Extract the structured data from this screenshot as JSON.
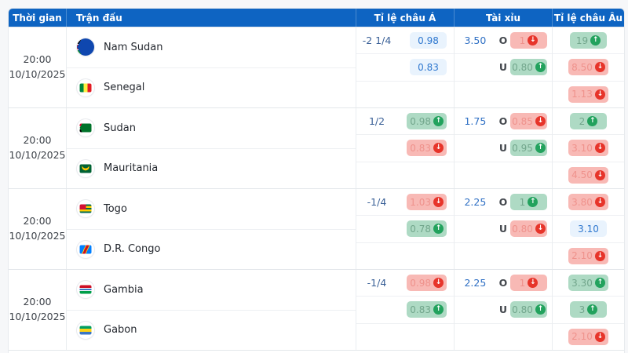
{
  "header": {
    "time": "Thời gian",
    "match": "Trận đấu",
    "asian": "Tỉ lệ châu Á",
    "ou": "Tài xỉu",
    "euro": "Tỉ lệ châu Âu"
  },
  "colors": {
    "header_bg": "#0e64c2",
    "pill_blue_bg": "#e9f3fd",
    "pill_blue_text": "#2f78cf",
    "pill_green_bg": "#aedac4",
    "pill_green_text": "#72a68c",
    "pill_red_bg": "#f8b9b5",
    "pill_red_text": "#ef928c",
    "trend_up_icon": "#22a25d",
    "trend_down_icon": "#e7342a"
  },
  "matches": [
    {
      "time": {
        "hour": "20:00",
        "date": "10/10/2025"
      },
      "home": {
        "name": "Nam Sudan",
        "flag": "flag-ssd"
      },
      "away": {
        "name": "Senegal",
        "flag": "flag-sen"
      },
      "asian": [
        {
          "hcp": "-2 1/4",
          "odds": "0.98",
          "style": "blue",
          "trend": "none"
        },
        {
          "hcp": "",
          "odds": "0.83",
          "style": "blue",
          "trend": "none"
        },
        {
          "hcp": "",
          "odds": "",
          "style": "none",
          "trend": "none"
        }
      ],
      "ou": [
        {
          "line": "3.50",
          "side": "O",
          "odds": "1",
          "style": "red",
          "trend": "down"
        },
        {
          "line": "",
          "side": "U",
          "odds": "0.80",
          "style": "green",
          "trend": "up"
        },
        {
          "line": "",
          "side": "",
          "odds": "",
          "style": "none",
          "trend": "none"
        }
      ],
      "euro": [
        {
          "odds": "19",
          "style": "green",
          "trend": "up"
        },
        {
          "odds": "8.50",
          "style": "red",
          "trend": "down"
        },
        {
          "odds": "1.13",
          "style": "red",
          "trend": "down"
        }
      ]
    },
    {
      "time": {
        "hour": "20:00",
        "date": "10/10/2025"
      },
      "home": {
        "name": "Sudan",
        "flag": "flag-sdn"
      },
      "away": {
        "name": "Mauritania",
        "flag": "flag-mrt"
      },
      "asian": [
        {
          "hcp": "1/2",
          "odds": "0.98",
          "style": "green",
          "trend": "up"
        },
        {
          "hcp": "",
          "odds": "0.83",
          "style": "red",
          "trend": "down"
        },
        {
          "hcp": "",
          "odds": "",
          "style": "none",
          "trend": "none"
        }
      ],
      "ou": [
        {
          "line": "1.75",
          "side": "O",
          "odds": "0.85",
          "style": "red",
          "trend": "down"
        },
        {
          "line": "",
          "side": "U",
          "odds": "0.95",
          "style": "green",
          "trend": "up"
        },
        {
          "line": "",
          "side": "",
          "odds": "",
          "style": "none",
          "trend": "none"
        }
      ],
      "euro": [
        {
          "odds": "2",
          "style": "green",
          "trend": "up"
        },
        {
          "odds": "3.10",
          "style": "red",
          "trend": "down"
        },
        {
          "odds": "4.50",
          "style": "red",
          "trend": "down"
        }
      ]
    },
    {
      "time": {
        "hour": "20:00",
        "date": "10/10/2025"
      },
      "home": {
        "name": "Togo",
        "flag": "flag-tgo"
      },
      "away": {
        "name": "D.R. Congo",
        "flag": "flag-cod"
      },
      "asian": [
        {
          "hcp": "-1/4",
          "odds": "1.03",
          "style": "red",
          "trend": "down"
        },
        {
          "hcp": "",
          "odds": "0.78",
          "style": "green",
          "trend": "up"
        },
        {
          "hcp": "",
          "odds": "",
          "style": "none",
          "trend": "none"
        }
      ],
      "ou": [
        {
          "line": "2.25",
          "side": "O",
          "odds": "1",
          "style": "green",
          "trend": "up"
        },
        {
          "line": "",
          "side": "U",
          "odds": "0.80",
          "style": "red",
          "trend": "down"
        },
        {
          "line": "",
          "side": "",
          "odds": "",
          "style": "none",
          "trend": "none"
        }
      ],
      "euro": [
        {
          "odds": "3.80",
          "style": "red",
          "trend": "down"
        },
        {
          "odds": "3.10",
          "style": "blue",
          "trend": "none"
        },
        {
          "odds": "2.10",
          "style": "red",
          "trend": "down"
        }
      ]
    },
    {
      "time": {
        "hour": "20:00",
        "date": "10/10/2025"
      },
      "home": {
        "name": "Gambia",
        "flag": "flag-gmb"
      },
      "away": {
        "name": "Gabon",
        "flag": "flag-gab"
      },
      "asian": [
        {
          "hcp": "-1/4",
          "odds": "0.98",
          "style": "red",
          "trend": "down"
        },
        {
          "hcp": "",
          "odds": "0.83",
          "style": "green",
          "trend": "up"
        },
        {
          "hcp": "",
          "odds": "",
          "style": "none",
          "trend": "none"
        }
      ],
      "ou": [
        {
          "line": "2.25",
          "side": "O",
          "odds": "1",
          "style": "red",
          "trend": "down"
        },
        {
          "line": "",
          "side": "U",
          "odds": "0.80",
          "style": "green",
          "trend": "up"
        },
        {
          "line": "",
          "side": "",
          "odds": "",
          "style": "none",
          "trend": "none"
        }
      ],
      "euro": [
        {
          "odds": "3.30",
          "style": "green",
          "trend": "up"
        },
        {
          "odds": "3",
          "style": "green",
          "trend": "up"
        },
        {
          "odds": "2.10",
          "style": "red",
          "trend": "down"
        }
      ]
    }
  ]
}
